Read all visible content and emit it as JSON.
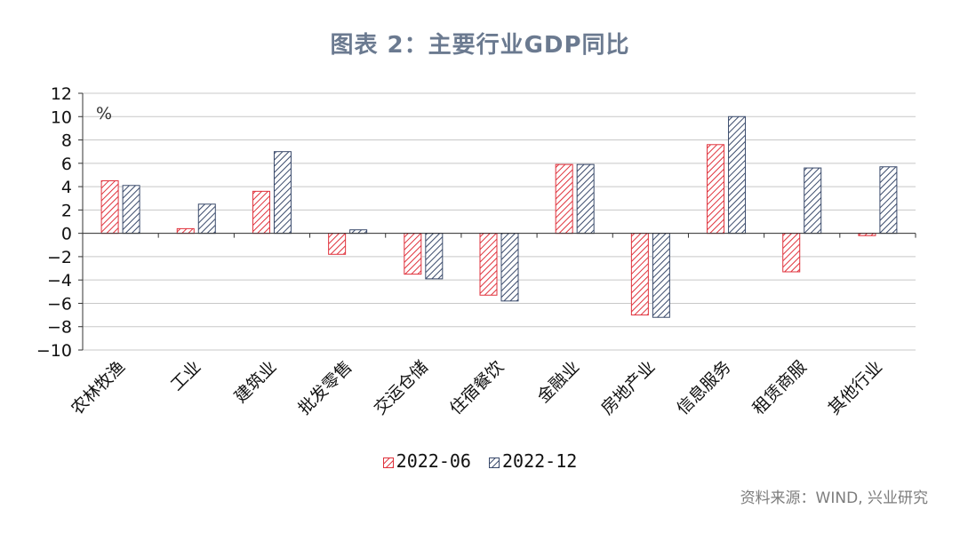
{
  "chart_data": {
    "type": "bar",
    "title": "图表 2：主要行业GDP同比",
    "unit_label": "%",
    "source": "资料来源：WIND, 兴业研究",
    "categories": [
      "农林牧渔",
      "工业",
      "建筑业",
      "批发零售",
      "交运仓储",
      "住宿餐饮",
      "金融业",
      "房地产业",
      "信息服务",
      "租赁商服",
      "其他行业"
    ],
    "series": [
      {
        "name": "2022-06",
        "color": "#e0323c",
        "values": [
          4.5,
          0.4,
          3.6,
          -1.8,
          -3.5,
          -5.3,
          5.9,
          -7.0,
          7.6,
          -3.3,
          -0.2
        ]
      },
      {
        "name": "2022-12",
        "color": "#3a4a6b",
        "values": [
          4.1,
          2.5,
          7.0,
          0.3,
          -3.9,
          -5.8,
          5.9,
          -7.2,
          10.0,
          5.6,
          5.7
        ]
      }
    ],
    "ylim": [
      -10,
      12
    ],
    "yticks": [
      12,
      10,
      8,
      6,
      4,
      2,
      0,
      -2,
      -4,
      -6,
      -8,
      -10
    ],
    "grid": true,
    "legend": "bottom"
  }
}
